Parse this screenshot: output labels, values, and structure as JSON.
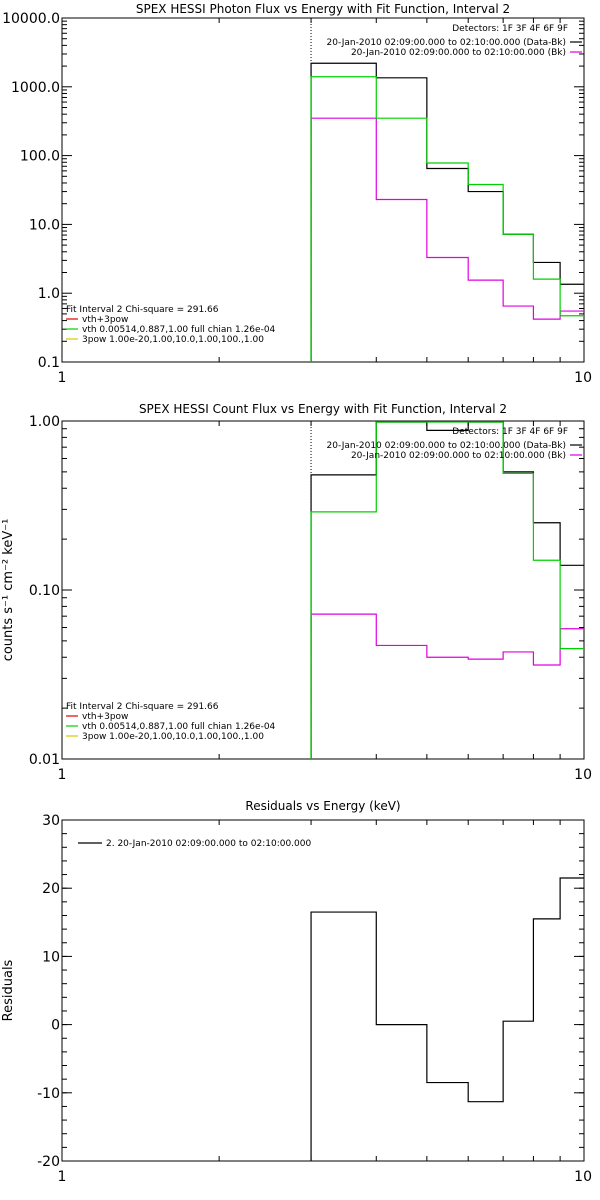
{
  "chart_data": [
    {
      "type": "line",
      "step": true,
      "title": "SPEX HESSI Photon Flux vs Energy with Fit Function, Interval 2",
      "xscale": "log",
      "yscale": "log",
      "xlim": [
        1,
        10
      ],
      "ylim": [
        0.1,
        10000
      ],
      "xticks": [
        1,
        10
      ],
      "xtick_labels": [
        "1",
        "10"
      ],
      "yticks": [
        0.1,
        1,
        10,
        100,
        1000,
        10000
      ],
      "ytick_labels": [
        "0.1",
        "1.0",
        "10.0",
        "100.0",
        "1000.0",
        "10000.0"
      ],
      "vline_x": 3.0,
      "edges": [
        3.0,
        4.0,
        5.0,
        6.0,
        7.0,
        8.0,
        9.0,
        10.0
      ],
      "series": [
        {
          "values": [
            2200,
            1350,
            65,
            30,
            7.2,
            2.8,
            1.35
          ],
          "color": "#000000"
        },
        {
          "values": [
            350,
            23,
            3.3,
            1.55,
            0.65,
            0.42,
            0.55
          ],
          "color": "#e000e0"
        },
        {
          "values": [
            1400,
            350,
            78,
            38,
            7.2,
            1.6,
            0.47
          ],
          "color": "#00d000"
        }
      ],
      "legend_top": {
        "detectors": "Detectors: 1F 3F 4F 6F 9F",
        "items": [
          {
            "text": "20-Jan-2010 02:09:00.000 to 02:10:00.000 (Data-Bk)",
            "color": "#000000"
          },
          {
            "text": "20-Jan-2010 02:09:00.000 to 02:10:00.000 (Bk)",
            "color": "#e000e0"
          }
        ]
      },
      "legend_bottom": {
        "heading": "Fit Interval 2   Chi-square = 291.66",
        "items": [
          {
            "text": "vth+3pow",
            "color": "#e00000"
          },
          {
            "text": "vth 0.00514,0.887,1.00  full chian 1.26e-04",
            "color": "#00d000"
          },
          {
            "text": "3pow 1.00e-20,1.00,10.0,1.00,100.,1.00",
            "color": "#d8c800"
          }
        ]
      }
    },
    {
      "type": "line",
      "step": true,
      "title": "SPEX HESSI Count Flux vs Energy with Fit Function, Interval 2",
      "ylabel": "counts s⁻¹ cm⁻² keV⁻¹",
      "xscale": "log",
      "yscale": "log",
      "xlim": [
        1,
        10
      ],
      "ylim": [
        0.01,
        1.0
      ],
      "xticks": [
        1,
        10
      ],
      "xtick_labels": [
        "1",
        "10"
      ],
      "yticks": [
        0.01,
        0.1,
        1.0
      ],
      "ytick_labels": [
        "0.01",
        "0.10",
        "1.00"
      ],
      "vline_x": 3.0,
      "edges": [
        3.0,
        4.0,
        5.0,
        6.0,
        7.0,
        8.0,
        9.0,
        10.0
      ],
      "series": [
        {
          "values": [
            0.48,
            1.0,
            0.88,
            1.0,
            0.5,
            0.25,
            0.14
          ],
          "color": "#000000"
        },
        {
          "values": [
            0.072,
            0.047,
            0.04,
            0.039,
            0.043,
            0.036,
            0.059
          ],
          "color": "#e000e0"
        },
        {
          "values": [
            0.29,
            1.2,
            1.2,
            1.2,
            0.49,
            0.15,
            0.045
          ],
          "color": "#00d000"
        }
      ],
      "legend_top": {
        "detectors": "Detectors: 1F 3F 4F 6F 9F",
        "items": [
          {
            "text": "20-Jan-2010 02:09:00.000 to 02:10:00.000 (Data-Bk)",
            "color": "#000000"
          },
          {
            "text": "20-Jan-2010 02:09:00.000 to 02:10:00.000 (Bk)",
            "color": "#e000e0"
          }
        ]
      },
      "legend_bottom": {
        "heading": "Fit Interval 2   Chi-square = 291.66",
        "items": [
          {
            "text": "vth+3pow",
            "color": "#e00000"
          },
          {
            "text": "vth 0.00514,0.887,1.00  full chian 1.26e-04",
            "color": "#00d000"
          },
          {
            "text": "3pow 1.00e-20,1.00,10.0,1.00,100.,1.00",
            "color": "#d8c800"
          }
        ]
      }
    },
    {
      "type": "line",
      "step": true,
      "title": "Residuals vs Energy (keV)",
      "ylabel": "Residuals",
      "xscale": "log",
      "yscale": "linear",
      "xlim": [
        1,
        10
      ],
      "ylim": [
        -20,
        30
      ],
      "xticks": [
        1,
        10
      ],
      "xtick_labels": [
        "1",
        "10"
      ],
      "yticks": [
        -20,
        -10,
        0,
        10,
        20,
        30
      ],
      "ytick_labels": [
        "-20",
        "-10",
        "0",
        "10",
        "20",
        "30"
      ],
      "edges": [
        3.0,
        4.0,
        5.0,
        6.0,
        7.0,
        8.0,
        9.0,
        10.0
      ],
      "series": [
        {
          "name": "2. 20-Jan-2010 02:09:00.000 to 02:10:00.000",
          "values": [
            16.5,
            0,
            -8.5,
            -11.3,
            0.5,
            15.5,
            21.5
          ],
          "color": "#000000"
        }
      ]
    }
  ]
}
